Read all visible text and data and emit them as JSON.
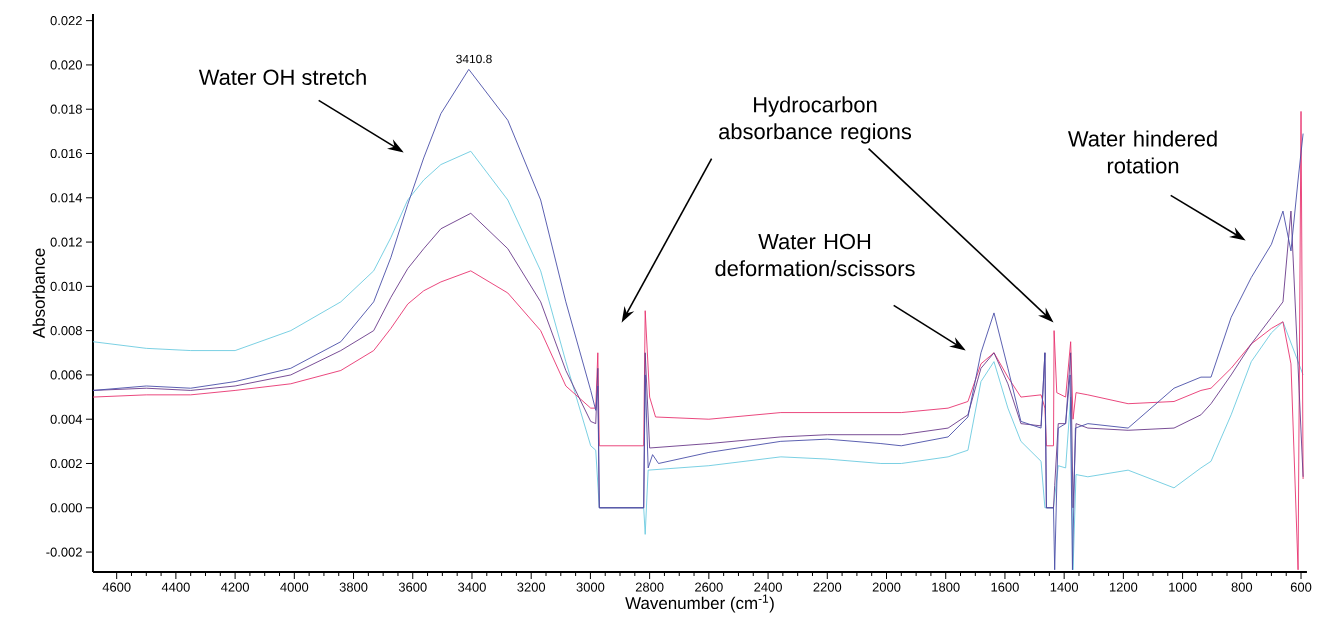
{
  "chart_data": {
    "type": "line",
    "xlabel": "Wavenumber (cm$^{-1}$)",
    "ylabel": "Absorbance",
    "xlim": [
      4680,
      580
    ],
    "ylim": [
      -0.0029,
      0.0223
    ],
    "xticks": [
      4600,
      4400,
      4200,
      4000,
      3800,
      3600,
      3400,
      3200,
      3000,
      2800,
      2600,
      2400,
      2200,
      2000,
      1800,
      1600,
      1400,
      1200,
      1000,
      800,
      600
    ],
    "yticks": [
      {
        "value": -0.002,
        "label": "-0.002"
      },
      {
        "value": 0,
        "label": "0.000"
      },
      {
        "value": 0.002,
        "label": "0.002"
      },
      {
        "value": 0.004,
        "label": "0.004"
      },
      {
        "value": 0.006,
        "label": "0.006"
      },
      {
        "value": 0.008,
        "label": "0.008"
      },
      {
        "value": 0.01,
        "label": "0.010"
      },
      {
        "value": 0.012,
        "label": "0.012"
      },
      {
        "value": 0.014,
        "label": "0.014"
      },
      {
        "value": 0.016,
        "label": "0.016"
      },
      {
        "value": 0.018,
        "label": "0.018"
      },
      {
        "value": 0.02,
        "label": "0.020"
      },
      {
        "value": 0.022,
        "label": "0.022"
      }
    ],
    "grid": false,
    "marker": "none",
    "line_style": "solid",
    "annotations": [
      "Water OH stretch",
      "3410.8",
      "Hydrocarbon absorbance regions",
      "Water HOH deformation/scissors",
      "Water hindered rotation"
    ],
    "series": [
      {
        "color": "#6ccbe0",
        "x": [
          4680,
          4500,
          4350,
          4200,
          4012,
          3843,
          3732,
          3674,
          3617,
          3563,
          3505,
          3404,
          3279,
          3168,
          3083,
          2999,
          2982,
          2970,
          2820,
          2815,
          2805,
          2600,
          2357,
          2200,
          2019,
          1950,
          1792,
          1725,
          1681,
          1637,
          1590,
          1546,
          1478,
          1465,
          1436,
          1420,
          1395,
          1378,
          1370,
          1360,
          1320,
          1184,
          1029,
          938,
          904,
          836,
          768,
          700,
          661,
          593
        ],
        "values": [
          0.0075,
          0.0072,
          0.0071,
          0.0071,
          0.008,
          0.0093,
          0.0107,
          0.0122,
          0.0139,
          0.0148,
          0.0155,
          0.0161,
          0.0139,
          0.0107,
          0.0066,
          0.0028,
          0.0026,
          0.0,
          0.0,
          -0.0012,
          0.0017,
          0.0019,
          0.0023,
          0.0022,
          0.002,
          0.002,
          0.0023,
          0.0026,
          0.0057,
          0.0066,
          0.0045,
          0.003,
          0.0021,
          0.0,
          0.0,
          0.0019,
          0.0018,
          0.005,
          -0.0028,
          0.0015,
          0.0014,
          0.0017,
          0.0009,
          0.0018,
          0.0021,
          0.0042,
          0.0066,
          0.0079,
          0.0084,
          0.006
        ]
      },
      {
        "color": "#e8336f",
        "x": [
          4680,
          4500,
          4350,
          4200,
          4012,
          3843,
          3732,
          3674,
          3617,
          3563,
          3505,
          3404,
          3279,
          3168,
          3083,
          2999,
          2982,
          2975,
          2970,
          2820,
          2815,
          2800,
          2780,
          2600,
          2357,
          2200,
          2019,
          1950,
          1792,
          1725,
          1681,
          1637,
          1590,
          1546,
          1478,
          1465,
          1460,
          1436,
          1434,
          1425,
          1395,
          1378,
          1370,
          1360,
          1320,
          1184,
          1029,
          938,
          904,
          836,
          768,
          700,
          661,
          634,
          610,
          600,
          593
        ],
        "values": [
          0.005,
          0.0051,
          0.0051,
          0.0053,
          0.0056,
          0.0062,
          0.0071,
          0.0081,
          0.0092,
          0.0098,
          0.0102,
          0.0107,
          0.0097,
          0.008,
          0.0055,
          0.0045,
          0.0045,
          0.007,
          0.0028,
          0.0028,
          0.0089,
          0.005,
          0.0041,
          0.004,
          0.0043,
          0.0043,
          0.0043,
          0.0043,
          0.0045,
          0.0048,
          0.0065,
          0.007,
          0.0059,
          0.005,
          0.0051,
          0.0045,
          0.0028,
          0.0028,
          0.008,
          0.0052,
          0.005,
          0.0075,
          0.004,
          0.0052,
          0.0051,
          0.0047,
          0.0048,
          0.0053,
          0.0054,
          0.0063,
          0.0074,
          0.0081,
          0.0084,
          0.0065,
          -0.0028,
          0.0179,
          0.0013
        ]
      },
      {
        "color": "#6a3a8a",
        "x": [
          4680,
          4500,
          4350,
          4200,
          4012,
          3843,
          3732,
          3674,
          3617,
          3563,
          3505,
          3404,
          3279,
          3168,
          3083,
          2999,
          2982,
          2975,
          2970,
          2820,
          2815,
          2800,
          2600,
          2357,
          2200,
          2019,
          1950,
          1792,
          1725,
          1681,
          1637,
          1590,
          1546,
          1478,
          1465,
          1460,
          1436,
          1432,
          1420,
          1395,
          1378,
          1370,
          1360,
          1320,
          1184,
          1029,
          938,
          904,
          836,
          768,
          700,
          661,
          634,
          593
        ],
        "values": [
          0.0053,
          0.0054,
          0.0053,
          0.0055,
          0.006,
          0.0071,
          0.008,
          0.0095,
          0.0108,
          0.0117,
          0.0126,
          0.0133,
          0.0117,
          0.0093,
          0.0062,
          0.0039,
          0.0038,
          0.0063,
          0.0,
          0.0,
          0.007,
          0.0027,
          0.0029,
          0.0032,
          0.0033,
          0.0033,
          0.0033,
          0.0036,
          0.0042,
          0.0063,
          0.007,
          0.0056,
          0.0038,
          0.0037,
          0.007,
          0.0,
          0.0,
          0.001,
          0.0038,
          0.0038,
          0.007,
          0.0,
          0.0038,
          0.0036,
          0.0035,
          0.0036,
          0.0042,
          0.0047,
          0.006,
          0.0074,
          0.0086,
          0.0093,
          0.0134,
          0.0014
        ]
      },
      {
        "color": "#4a4fa8",
        "x": [
          4680,
          4500,
          4350,
          4200,
          4012,
          3843,
          3732,
          3674,
          3617,
          3563,
          3505,
          3410.8,
          3279,
          3168,
          3083,
          2999,
          2982,
          2975,
          2970,
          2820,
          2815,
          2805,
          2790,
          2770,
          2600,
          2357,
          2200,
          2019,
          1950,
          1792,
          1725,
          1681,
          1637,
          1590,
          1546,
          1478,
          1465,
          1460,
          1436,
          1432,
          1420,
          1395,
          1380,
          1372,
          1362,
          1320,
          1184,
          1029,
          938,
          904,
          836,
          768,
          700,
          661,
          634,
          610,
          593
        ],
        "values": [
          0.0053,
          0.0055,
          0.0054,
          0.0057,
          0.0063,
          0.0075,
          0.0093,
          0.0113,
          0.0137,
          0.0158,
          0.0178,
          0.0198,
          0.0175,
          0.0139,
          0.0093,
          0.0053,
          0.0044,
          0.0055,
          0.0,
          0.0,
          0.006,
          0.0018,
          0.0024,
          0.002,
          0.0025,
          0.003,
          0.0031,
          0.0029,
          0.0028,
          0.0032,
          0.0041,
          0.007,
          0.0088,
          0.0063,
          0.0039,
          0.0036,
          0.007,
          0.0,
          0.0,
          -0.0028,
          0.0036,
          0.0038,
          0.006,
          -0.0028,
          0.0036,
          0.0038,
          0.0036,
          0.0054,
          0.0059,
          0.0059,
          0.0086,
          0.0104,
          0.0119,
          0.0134,
          0.0116,
          0.0148,
          0.0169
        ]
      }
    ]
  }
}
